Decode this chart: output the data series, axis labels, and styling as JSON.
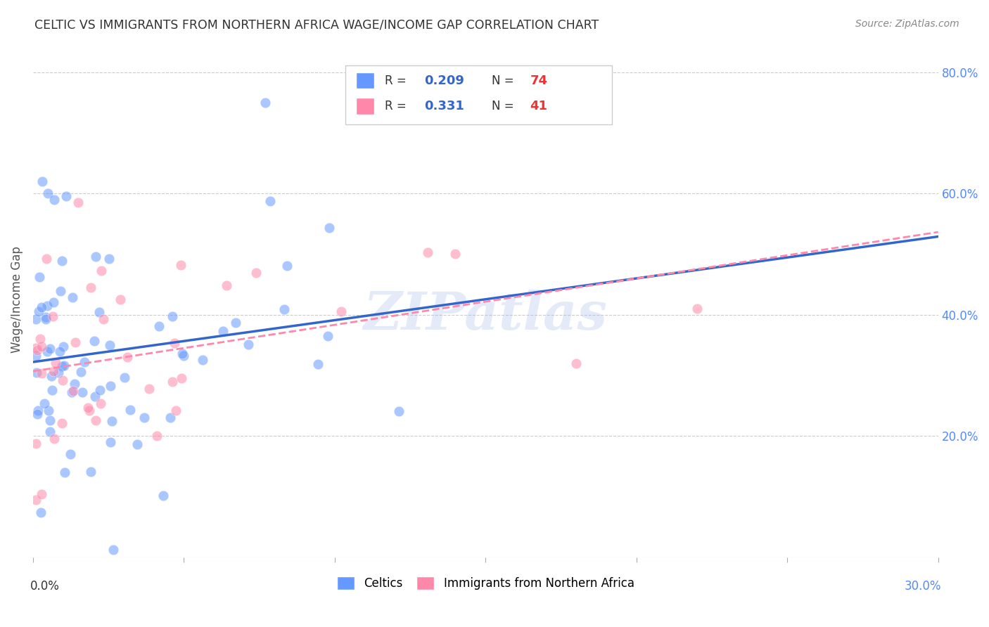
{
  "title": "CELTIC VS IMMIGRANTS FROM NORTHERN AFRICA WAGE/INCOME GAP CORRELATION CHART",
  "source": "Source: ZipAtlas.com",
  "ylabel": "Wage/Income Gap",
  "legend1_R": "0.209",
  "legend1_N": "74",
  "legend2_R": "0.331",
  "legend2_N": "41",
  "celtics_color": "#6699FF",
  "immigrants_color": "#FF88AA",
  "trendline1_color": "#3366CC",
  "trendline2_color": "#FF88AA",
  "watermark": "ZIPatlas",
  "N_celtics": 74,
  "N_immigrants": 41,
  "R_celtics": 0.209,
  "R_immigrants": 0.331
}
